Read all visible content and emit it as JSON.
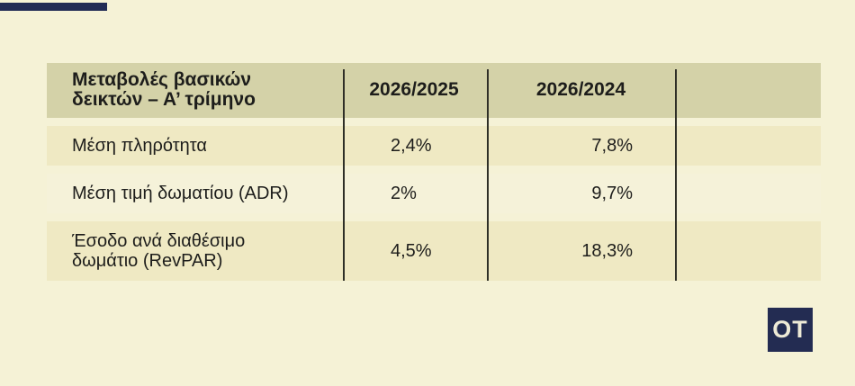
{
  "page": {
    "background_color": "#f5f2d6",
    "text_color": "#1d1d1b",
    "accent_navy": "#222c55"
  },
  "table": {
    "header": {
      "label": "Μεταβολές βασικών\nδεικτών – Α’ τρίμηνο",
      "columns": [
        "2026/2025",
        "2026/2024"
      ],
      "background_color": "#d4d2a8"
    },
    "rows": [
      {
        "label": "Μέση πληρότητα",
        "values": [
          "2,4%",
          "7,8%"
        ]
      },
      {
        "label": "Μέση τιμή δωματίου (ADR)",
        "values": [
          "2%",
          "9,7%"
        ]
      },
      {
        "label": "Έσοδο ανά διαθέσιμο\nδωμάτιο (RevPAR)",
        "values": [
          "4,5%",
          "18,3%"
        ]
      }
    ],
    "row_alt_background": "#efe9c3",
    "row_plain_background": "#f5f2d9",
    "divider_color": "#2f2f27"
  },
  "logo": {
    "text": "OT",
    "background_color": "#232c52",
    "text_color": "#edead6"
  },
  "chart_data": {
    "type": "table",
    "title": "Μεταβολές βασικών δεικτών – Α’ τρίμηνο",
    "columns": [
      "2026/2025",
      "2026/2024"
    ],
    "rows": [
      {
        "label": "Μέση πληρότητα",
        "values": [
          "2,4%",
          "7,8%"
        ],
        "values_numeric_pct": [
          2.4,
          7.8
        ]
      },
      {
        "label": "Μέση τιμή δωματίου (ADR)",
        "values": [
          "2%",
          "9,7%"
        ],
        "values_numeric_pct": [
          2.0,
          9.7
        ]
      },
      {
        "label": "Έσοδο ανά διαθέσιμο δωμάτιο (RevPAR)",
        "values": [
          "4,5%",
          "18,3%"
        ],
        "values_numeric_pct": [
          4.5,
          18.3
        ]
      }
    ]
  }
}
